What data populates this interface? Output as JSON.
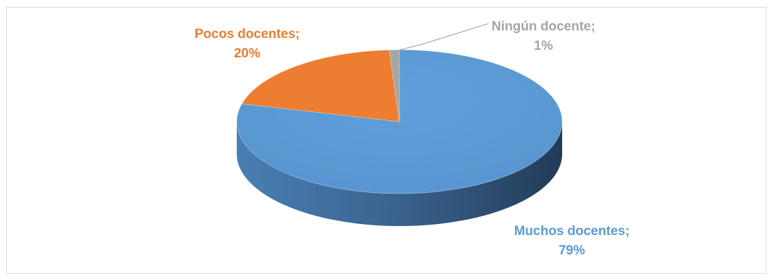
{
  "chart_data": {
    "type": "pie",
    "style": "3d",
    "labels": [
      "Muchos docentes",
      "Pocos docentes",
      "Ningún docente"
    ],
    "values": [
      79,
      20,
      1
    ],
    "colors": [
      "#5b9bd5",
      "#ed7d31",
      "#a5a5a5"
    ],
    "data_labels": [
      {
        "name": "Muchos docentes;",
        "value": "79%"
      },
      {
        "name": "Pocos docentes;",
        "value": "20%"
      },
      {
        "name": "Ningún docente;",
        "value": "1%"
      }
    ],
    "legend": "none"
  }
}
